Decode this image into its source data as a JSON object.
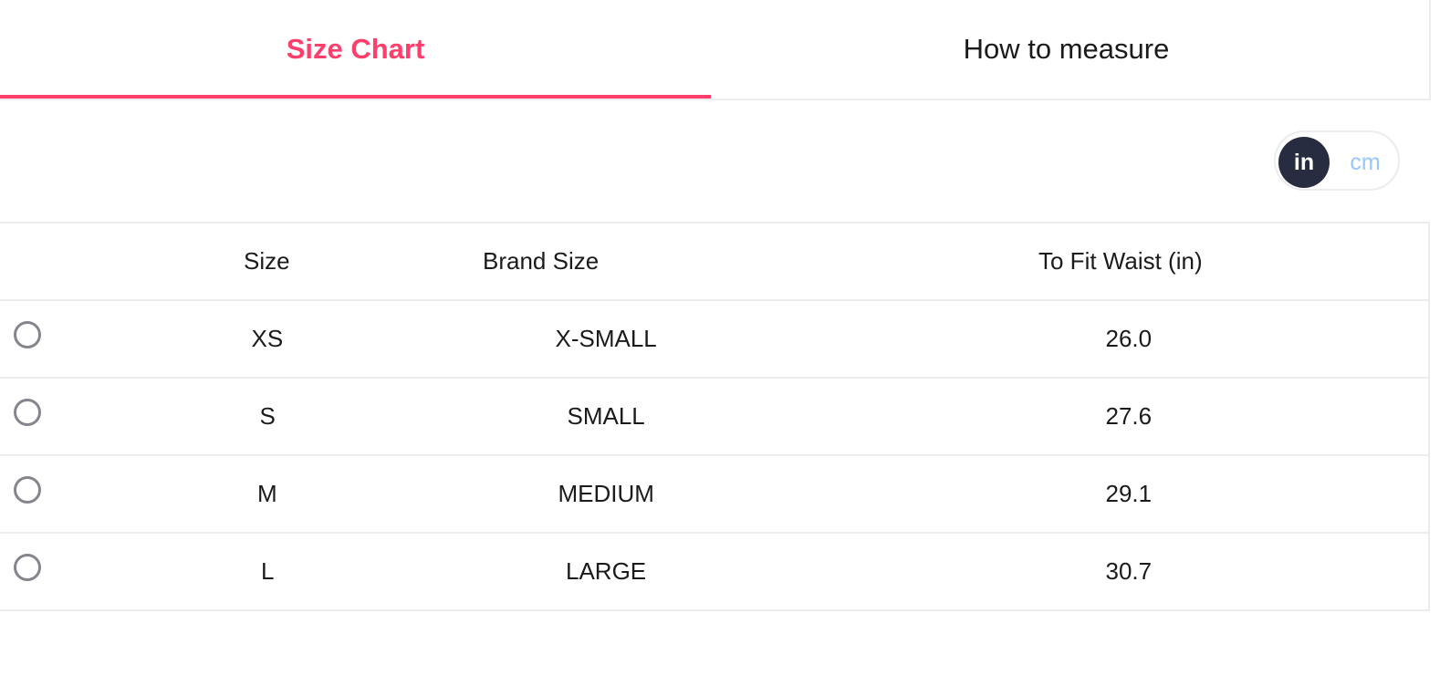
{
  "tabs": [
    {
      "label": "Size Chart",
      "active": true
    },
    {
      "label": "How to measure",
      "active": false
    }
  ],
  "unit_toggle": {
    "options": [
      "in",
      "cm"
    ],
    "selected": "in",
    "selected_bg": "#282c40",
    "unselected_color": "#95c7ff"
  },
  "accent_color": "#fe3f6c",
  "table": {
    "headers": [
      "Size",
      "Brand Size",
      "To Fit Waist (in)"
    ],
    "rows": [
      {
        "size": "XS",
        "brand": "X-SMALL",
        "waist": "26.0",
        "selected": false
      },
      {
        "size": "S",
        "brand": "SMALL",
        "waist": "27.6",
        "selected": false
      },
      {
        "size": "M",
        "brand": "MEDIUM",
        "waist": "29.1",
        "selected": false
      },
      {
        "size": "L",
        "brand": "LARGE",
        "waist": "30.7",
        "selected": false
      }
    ]
  }
}
